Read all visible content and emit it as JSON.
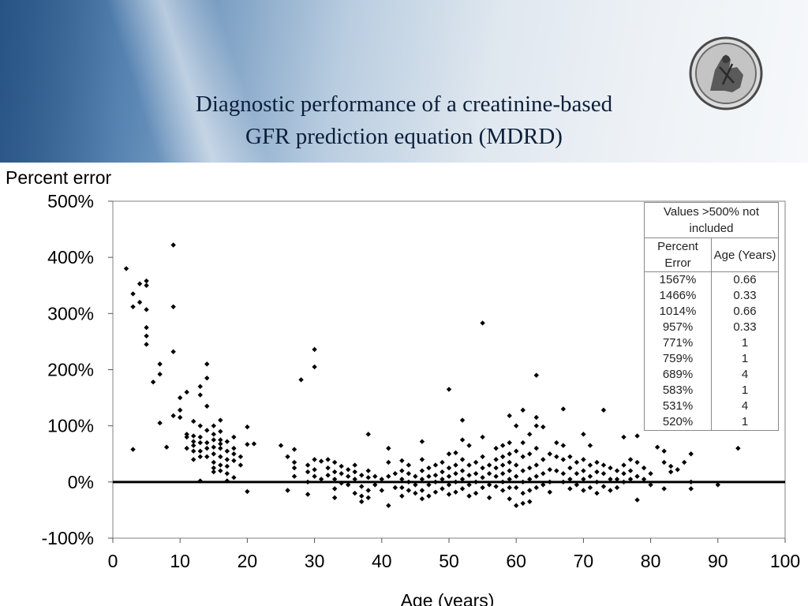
{
  "slide": {
    "title_line1": "Diagnostic performance of a creatinine-based",
    "title_line2": "GFR prediction equation (MDRD)",
    "logo_icon": "coin-icon"
  },
  "chart_data": {
    "type": "scatter",
    "ylabel": "Percent error",
    "xlabel": "Age (years)",
    "xlim": [
      0,
      100
    ],
    "ylim": [
      -100,
      500
    ],
    "x_ticks": [
      0,
      10,
      20,
      30,
      40,
      50,
      60,
      70,
      80,
      90,
      100
    ],
    "y_ticks": [
      -100,
      0,
      100,
      200,
      300,
      400,
      500
    ],
    "y_tick_labels": [
      "-100%",
      "0%",
      "100%",
      "200%",
      "300%",
      "400%",
      "500%"
    ],
    "grid": false,
    "reference_line_y": 0,
    "marker": "diamond",
    "marker_color": "#000000",
    "points": [
      [
        2,
        380
      ],
      [
        3,
        335
      ],
      [
        3,
        312
      ],
      [
        4,
        353
      ],
      [
        4,
        320
      ],
      [
        5,
        358
      ],
      [
        5,
        350
      ],
      [
        5,
        307
      ],
      [
        5,
        275
      ],
      [
        5,
        260
      ],
      [
        5,
        245
      ],
      [
        3,
        58
      ],
      [
        6,
        178
      ],
      [
        7,
        210
      ],
      [
        7,
        192
      ],
      [
        7,
        105
      ],
      [
        8,
        62
      ],
      [
        9,
        422
      ],
      [
        9,
        312
      ],
      [
        9,
        232
      ],
      [
        9,
        118
      ],
      [
        10,
        128
      ],
      [
        10,
        115
      ],
      [
        10,
        150
      ],
      [
        11,
        160
      ],
      [
        11,
        85
      ],
      [
        11,
        80
      ],
      [
        11,
        60
      ],
      [
        12,
        82
      ],
      [
        12,
        72
      ],
      [
        12,
        65
      ],
      [
        12,
        55
      ],
      [
        12,
        40
      ],
      [
        12,
        108
      ],
      [
        13,
        170
      ],
      [
        13,
        155
      ],
      [
        13,
        100
      ],
      [
        13,
        80
      ],
      [
        13,
        70
      ],
      [
        13,
        55
      ],
      [
        13,
        45
      ],
      [
        13,
        2
      ],
      [
        14,
        210
      ],
      [
        14,
        185
      ],
      [
        14,
        135
      ],
      [
        14,
        92
      ],
      [
        14,
        70
      ],
      [
        14,
        60
      ],
      [
        14,
        45
      ],
      [
        15,
        100
      ],
      [
        15,
        85
      ],
      [
        15,
        75
      ],
      [
        15,
        62
      ],
      [
        15,
        50
      ],
      [
        15,
        35
      ],
      [
        15,
        25
      ],
      [
        15,
        18
      ],
      [
        16,
        110
      ],
      [
        16,
        90
      ],
      [
        16,
        75
      ],
      [
        16,
        68
      ],
      [
        16,
        60
      ],
      [
        16,
        45
      ],
      [
        16,
        30
      ],
      [
        16,
        20
      ],
      [
        17,
        72
      ],
      [
        17,
        55
      ],
      [
        17,
        40
      ],
      [
        17,
        28
      ],
      [
        17,
        15
      ],
      [
        17,
        2
      ],
      [
        18,
        80
      ],
      [
        18,
        60
      ],
      [
        18,
        50
      ],
      [
        18,
        38
      ],
      [
        18,
        8
      ],
      [
        19,
        45
      ],
      [
        19,
        30
      ],
      [
        20,
        98
      ],
      [
        20,
        67
      ],
      [
        20,
        -17
      ],
      [
        21,
        68
      ],
      [
        25,
        65
      ],
      [
        26,
        -15
      ],
      [
        26,
        45
      ],
      [
        27,
        58
      ],
      [
        27,
        35
      ],
      [
        27,
        25
      ],
      [
        27,
        10
      ],
      [
        28,
        182
      ],
      [
        29,
        30
      ],
      [
        29,
        18
      ],
      [
        29,
        0
      ],
      [
        29,
        -22
      ],
      [
        30,
        236
      ],
      [
        30,
        205
      ],
      [
        30,
        40
      ],
      [
        30,
        22
      ],
      [
        30,
        10
      ],
      [
        31,
        37
      ],
      [
        31,
        5
      ],
      [
        32,
        40
      ],
      [
        32,
        25
      ],
      [
        32,
        12
      ],
      [
        33,
        35
      ],
      [
        33,
        18
      ],
      [
        33,
        5
      ],
      [
        33,
        -12
      ],
      [
        33,
        -28
      ],
      [
        34,
        28
      ],
      [
        34,
        15
      ],
      [
        34,
        -2
      ],
      [
        35,
        22
      ],
      [
        35,
        10
      ],
      [
        35,
        -5
      ],
      [
        36,
        30
      ],
      [
        36,
        18
      ],
      [
        36,
        5
      ],
      [
        36,
        -20
      ],
      [
        37,
        12
      ],
      [
        37,
        -8
      ],
      [
        37,
        -25
      ],
      [
        37,
        -35
      ],
      [
        38,
        85
      ],
      [
        38,
        20
      ],
      [
        38,
        8
      ],
      [
        38,
        -15
      ],
      [
        38,
        -28
      ],
      [
        39,
        10
      ],
      [
        39,
        -5
      ],
      [
        40,
        5
      ],
      [
        40,
        -15
      ],
      [
        41,
        60
      ],
      [
        41,
        35
      ],
      [
        41,
        10
      ],
      [
        41,
        -42
      ],
      [
        42,
        15
      ],
      [
        42,
        -10
      ],
      [
        43,
        38
      ],
      [
        43,
        20
      ],
      [
        43,
        5
      ],
      [
        43,
        -10
      ],
      [
        43,
        -25
      ],
      [
        44,
        30
      ],
      [
        44,
        15
      ],
      [
        44,
        0
      ],
      [
        44,
        -15
      ],
      [
        45,
        10
      ],
      [
        45,
        -5
      ],
      [
        45,
        -20
      ],
      [
        46,
        72
      ],
      [
        46,
        40
      ],
      [
        46,
        20
      ],
      [
        46,
        5
      ],
      [
        46,
        -15
      ],
      [
        46,
        -30
      ],
      [
        47,
        25
      ],
      [
        47,
        10
      ],
      [
        47,
        -5
      ],
      [
        47,
        -25
      ],
      [
        48,
        30
      ],
      [
        48,
        12
      ],
      [
        48,
        0
      ],
      [
        48,
        -18
      ],
      [
        49,
        35
      ],
      [
        49,
        18
      ],
      [
        49,
        5
      ],
      [
        49,
        -12
      ],
      [
        50,
        165
      ],
      [
        50,
        50
      ],
      [
        50,
        25
      ],
      [
        50,
        10
      ],
      [
        50,
        -5
      ],
      [
        50,
        -22
      ],
      [
        51,
        52
      ],
      [
        51,
        30
      ],
      [
        51,
        15
      ],
      [
        51,
        0
      ],
      [
        51,
        -18
      ],
      [
        52,
        110
      ],
      [
        52,
        75
      ],
      [
        52,
        40
      ],
      [
        52,
        20
      ],
      [
        52,
        5
      ],
      [
        52,
        -12
      ],
      [
        53,
        65
      ],
      [
        53,
        30
      ],
      [
        53,
        12
      ],
      [
        53,
        -5
      ],
      [
        53,
        -25
      ],
      [
        54,
        35
      ],
      [
        54,
        15
      ],
      [
        54,
        0
      ],
      [
        54,
        -20
      ],
      [
        55,
        283
      ],
      [
        55,
        80
      ],
      [
        55,
        45
      ],
      [
        55,
        25
      ],
      [
        55,
        8
      ],
      [
        55,
        -10
      ],
      [
        56,
        30
      ],
      [
        56,
        15
      ],
      [
        56,
        -5
      ],
      [
        56,
        -28
      ],
      [
        57,
        60
      ],
      [
        57,
        40
      ],
      [
        57,
        25
      ],
      [
        57,
        10
      ],
      [
        57,
        -8
      ],
      [
        58,
        65
      ],
      [
        58,
        45
      ],
      [
        58,
        30
      ],
      [
        58,
        15
      ],
      [
        58,
        0
      ],
      [
        58,
        -15
      ],
      [
        59,
        118
      ],
      [
        59,
        70
      ],
      [
        59,
        50
      ],
      [
        59,
        35
      ],
      [
        59,
        20
      ],
      [
        59,
        5
      ],
      [
        59,
        -10
      ],
      [
        59,
        -30
      ],
      [
        60,
        100
      ],
      [
        60,
        55
      ],
      [
        60,
        30
      ],
      [
        60,
        10
      ],
      [
        60,
        -10
      ],
      [
        60,
        -42
      ],
      [
        61,
        128
      ],
      [
        61,
        70
      ],
      [
        61,
        45
      ],
      [
        61,
        20
      ],
      [
        61,
        0
      ],
      [
        61,
        -20
      ],
      [
        61,
        -38
      ],
      [
        62,
        85
      ],
      [
        62,
        50
      ],
      [
        62,
        25
      ],
      [
        62,
        5
      ],
      [
        62,
        -15
      ],
      [
        62,
        -35
      ],
      [
        63,
        190
      ],
      [
        63,
        115
      ],
      [
        63,
        100
      ],
      [
        63,
        60
      ],
      [
        63,
        30
      ],
      [
        63,
        10
      ],
      [
        63,
        -10
      ],
      [
        64,
        98
      ],
      [
        64,
        40
      ],
      [
        64,
        15
      ],
      [
        64,
        -5
      ],
      [
        65,
        50
      ],
      [
        65,
        22
      ],
      [
        65,
        0
      ],
      [
        65,
        -18
      ],
      [
        66,
        70
      ],
      [
        66,
        45
      ],
      [
        66,
        20
      ],
      [
        67,
        130
      ],
      [
        67,
        65
      ],
      [
        67,
        40
      ],
      [
        67,
        15
      ],
      [
        67,
        0
      ],
      [
        68,
        45
      ],
      [
        68,
        25
      ],
      [
        68,
        5
      ],
      [
        68,
        -12
      ],
      [
        69,
        35
      ],
      [
        69,
        15
      ],
      [
        69,
        -5
      ],
      [
        70,
        85
      ],
      [
        70,
        40
      ],
      [
        70,
        20
      ],
      [
        70,
        5
      ],
      [
        70,
        -15
      ],
      [
        71,
        65
      ],
      [
        71,
        30
      ],
      [
        71,
        10
      ],
      [
        71,
        -10
      ],
      [
        72,
        35
      ],
      [
        72,
        18
      ],
      [
        72,
        0
      ],
      [
        72,
        -20
      ],
      [
        73,
        128
      ],
      [
        73,
        30
      ],
      [
        73,
        15
      ],
      [
        73,
        -8
      ],
      [
        74,
        25
      ],
      [
        74,
        5
      ],
      [
        74,
        -15
      ],
      [
        75,
        20
      ],
      [
        75,
        5
      ],
      [
        75,
        -10
      ],
      [
        76,
        80
      ],
      [
        76,
        30
      ],
      [
        76,
        15
      ],
      [
        76,
        0
      ],
      [
        77,
        40
      ],
      [
        77,
        20
      ],
      [
        77,
        5
      ],
      [
        78,
        82
      ],
      [
        78,
        35
      ],
      [
        78,
        10
      ],
      [
        78,
        -32
      ],
      [
        79,
        25
      ],
      [
        79,
        5
      ],
      [
        80,
        15
      ],
      [
        80,
        -5
      ],
      [
        81,
        62
      ],
      [
        82,
        55
      ],
      [
        82,
        35
      ],
      [
        82,
        -12
      ],
      [
        83,
        28
      ],
      [
        83,
        18
      ],
      [
        84,
        22
      ],
      [
        85,
        35
      ],
      [
        86,
        50
      ],
      [
        86,
        0
      ],
      [
        86,
        -12
      ],
      [
        90,
        -5
      ],
      [
        93,
        60
      ]
    ],
    "table": {
      "caption": "Values >500% not included",
      "headers": [
        "Percent Error",
        "Age (Years)"
      ],
      "rows": [
        [
          "1567%",
          "0.66"
        ],
        [
          "1466%",
          "0.33"
        ],
        [
          "1014%",
          "0.66"
        ],
        [
          "957%",
          "0.33"
        ],
        [
          "771%",
          "1"
        ],
        [
          "759%",
          "1"
        ],
        [
          "689%",
          "4"
        ],
        [
          "583%",
          "1"
        ],
        [
          "531%",
          "4"
        ],
        [
          "520%",
          "1"
        ]
      ]
    }
  }
}
